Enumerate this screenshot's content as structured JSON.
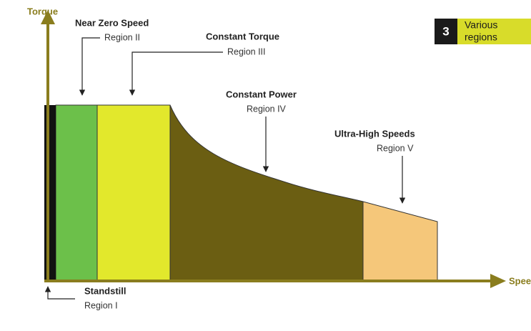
{
  "axes": {
    "y_label": "Torque",
    "x_label": "Speed"
  },
  "badge": {
    "number": "3",
    "lines": [
      "Various",
      "regions"
    ]
  },
  "regions": [
    {
      "title": "Standstill",
      "label": "Region I"
    },
    {
      "title": "Near Zero Speed",
      "label": "Region II"
    },
    {
      "title": "Constant Torque",
      "label": "Region III"
    },
    {
      "title": "Constant Power",
      "label": "Region IV"
    },
    {
      "title": "Ultra-High Speeds",
      "label": "Region V"
    }
  ]
}
